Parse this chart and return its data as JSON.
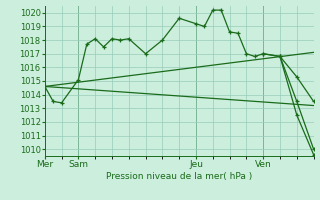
{
  "bg_color": "#cceedd",
  "line_color": "#1a6b1a",
  "grid_color": "#99ccbb",
  "xlabel_text": "Pression niveau de la mer( hPa )",
  "x_tick_labels": [
    "Mer",
    "Sam",
    "Jeu",
    "Ven"
  ],
  "x_tick_positions": [
    0,
    2,
    9,
    13
  ],
  "ylim": [
    1009.5,
    1020.5
  ],
  "yticks": [
    1010,
    1011,
    1012,
    1013,
    1014,
    1015,
    1016,
    1017,
    1018,
    1019,
    1020
  ],
  "xlim": [
    0,
    16
  ],
  "vlines": [
    0,
    2,
    9,
    13
  ],
  "line_jagged": {
    "x": [
      0,
      0.5,
      1,
      2,
      2.5,
      3,
      3.5,
      4,
      4.5,
      5,
      6,
      7,
      8,
      9,
      9.5,
      10,
      10.5,
      11,
      11.5,
      12,
      12.5,
      13,
      14,
      15,
      16
    ],
    "y": [
      1014.6,
      1013.5,
      1013.4,
      1015.1,
      1017.7,
      1018.1,
      1017.5,
      1018.1,
      1018.0,
      1018.1,
      1017.0,
      1018.0,
      1019.6,
      1019.2,
      1019.0,
      1020.2,
      1020.2,
      1018.6,
      1018.5,
      1017.0,
      1016.8,
      1017.0,
      1016.8,
      1015.3,
      1013.5
    ]
  },
  "line_upper_trend": {
    "x": [
      0,
      16
    ],
    "y": [
      1014.6,
      1017.1
    ]
  },
  "line_lower_trend": {
    "x": [
      0,
      16
    ],
    "y": [
      1014.6,
      1013.2
    ]
  },
  "line_descent": {
    "x": [
      13,
      14,
      15,
      16
    ],
    "y": [
      1017.0,
      1016.8,
      1013.5,
      1010.0
    ]
  },
  "line_steepest": {
    "x": [
      14,
      15,
      16
    ],
    "y": [
      1016.8,
      1012.5,
      1009.6
    ]
  }
}
